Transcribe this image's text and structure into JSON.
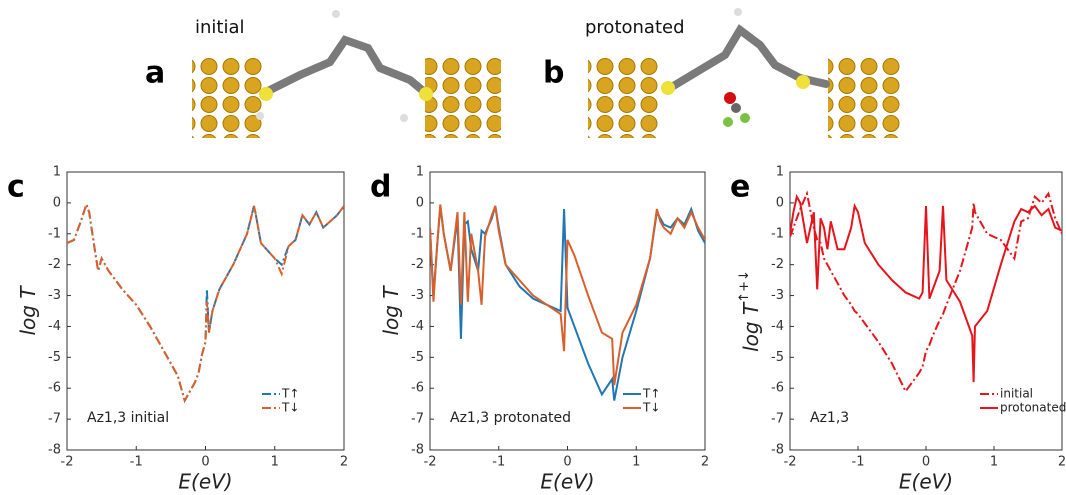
{
  "panels": {
    "a": {
      "label": "a",
      "caption": "initial"
    },
    "b": {
      "label": "b",
      "caption": "protonated"
    }
  },
  "chart_data": [
    {
      "type": "line",
      "panel_label": "c",
      "xlabel": "E(eV)",
      "ylabel": "log T",
      "annotation": "Az1,3 initial",
      "legend": "lower right",
      "xlim": [
        -2,
        2
      ],
      "ylim": [
        -8,
        1
      ],
      "xticks": [
        -2,
        -1,
        0,
        1,
        2
      ],
      "yticks": [
        -8,
        -7,
        -6,
        -5,
        -4,
        -3,
        -2,
        -1,
        0,
        1
      ],
      "x": [
        -2,
        -1.9,
        -1.8,
        -1.72,
        -1.68,
        -1.6,
        -1.55,
        -1.5,
        -1.4,
        -1.2,
        -1,
        -0.8,
        -0.6,
        -0.4,
        -0.3,
        -0.25,
        -0.15,
        -0.1,
        -0.05,
        0,
        0.02,
        0.05,
        0.1,
        0.2,
        0.4,
        0.6,
        0.7,
        0.72,
        0.8,
        1,
        1.1,
        1.2,
        1.3,
        1.4,
        1.5,
        1.6,
        1.7,
        1.8,
        1.9,
        2
      ],
      "series": [
        {
          "name": "T↑",
          "color": "#1f77b4",
          "dash": "dashdot",
          "values": [
            -1.3,
            -1.2,
            -0.6,
            -0.05,
            -0.3,
            -1.5,
            -2.2,
            -1.8,
            -2.2,
            -2.8,
            -3.3,
            -4,
            -4.8,
            -5.6,
            -6.4,
            -6.2,
            -5.8,
            -5.5,
            -4.9,
            -4.5,
            -2.8,
            -4.2,
            -3.5,
            -2.8,
            -2,
            -1,
            -0.1,
            -0.3,
            -1.3,
            -1.8,
            -2,
            -1.4,
            -1.2,
            -0.4,
            -0.7,
            -0.3,
            -0.8,
            -0.6,
            -0.4,
            -0.1
          ]
        },
        {
          "name": "T↓",
          "color": "#d9602a",
          "dash": "dashdot",
          "values": [
            -1.3,
            -1.2,
            -0.6,
            -0.05,
            -0.3,
            -1.5,
            -2.2,
            -1.8,
            -2.2,
            -2.8,
            -3.3,
            -4,
            -4.8,
            -5.6,
            -6.4,
            -6.2,
            -5.8,
            -5.5,
            -4.9,
            -4.5,
            -3.2,
            -4.2,
            -3.5,
            -2.8,
            -2,
            -1,
            -0.1,
            -0.3,
            -1.3,
            -1.8,
            -2.3,
            -1.4,
            -1.2,
            -0.4,
            -0.7,
            -0.3,
            -0.8,
            -0.6,
            -0.4,
            -0.1
          ]
        }
      ]
    },
    {
      "type": "line",
      "panel_label": "d",
      "xlabel": "E(eV)",
      "ylabel": "log T",
      "annotation": "Az1,3 protonated",
      "legend": "lower right",
      "xlim": [
        -2,
        2
      ],
      "ylim": [
        -8,
        1
      ],
      "xticks": [
        -2,
        -1,
        0,
        1,
        2
      ],
      "yticks": [
        -8,
        -7,
        -6,
        -5,
        -4,
        -3,
        -2,
        -1,
        0,
        1
      ],
      "x": [
        -2,
        -1.95,
        -1.9,
        -1.85,
        -1.8,
        -1.7,
        -1.6,
        -1.55,
        -1.5,
        -1.45,
        -1.4,
        -1.3,
        -1.25,
        -1.2,
        -1.1,
        -1.05,
        -1,
        -0.9,
        -0.7,
        -0.5,
        -0.3,
        -0.1,
        -0.05,
        0,
        0.1,
        0.3,
        0.5,
        0.65,
        0.68,
        0.8,
        1,
        1.2,
        1.3,
        1.35,
        1.4,
        1.5,
        1.6,
        1.7,
        1.8,
        1.9,
        2
      ],
      "series": [
        {
          "name": "T↑",
          "color": "#1f77b4",
          "dash": "solid",
          "values": [
            -0.8,
            -3,
            -1.5,
            -0.1,
            -1,
            -2.2,
            -0.5,
            -4.4,
            -0.7,
            -0.6,
            -1.5,
            -2.2,
            -0.9,
            -1,
            -0.5,
            -0.1,
            -0.8,
            -2,
            -2.7,
            -3.1,
            -3.3,
            -3.5,
            -0.2,
            -3.4,
            -4,
            -5.2,
            -6.2,
            -5.7,
            -6.4,
            -5,
            -3.5,
            -1.8,
            -0.3,
            -0.5,
            -0.7,
            -0.8,
            -0.5,
            -0.7,
            -0.2,
            -0.9,
            -1.3
          ]
        },
        {
          "name": "T↓",
          "color": "#d9602a",
          "dash": "solid",
          "values": [
            -0.8,
            -3.2,
            -1.5,
            -0.05,
            -1,
            -2.2,
            -0.3,
            -3.3,
            -0.3,
            -3.2,
            -1,
            -2.2,
            -3.3,
            -1.1,
            -0.4,
            -0.1,
            -0.9,
            -2,
            -2.5,
            -3,
            -3.3,
            -3.6,
            -4.8,
            -1.2,
            -1.7,
            -3,
            -4.2,
            -4.4,
            -5.9,
            -4.2,
            -3.3,
            -1.8,
            -0.2,
            -0.6,
            -0.8,
            -1,
            -0.5,
            -0.8,
            -0.3,
            -0.8,
            -1.2
          ]
        }
      ]
    },
    {
      "type": "line",
      "panel_label": "e",
      "xlabel": "E(eV)",
      "ylabel": "log T",
      "ylabel_sup": "↑+↓",
      "annotation": "Az1,3",
      "legend": "lower right",
      "xlim": [
        -2,
        2
      ],
      "ylim": [
        -8,
        1
      ],
      "xticks": [
        -2,
        -1,
        0,
        1,
        2
      ],
      "yticks": [
        -8,
        -7,
        -6,
        -5,
        -4,
        -3,
        -2,
        -1,
        0,
        1
      ],
      "x": [
        -2,
        -1.95,
        -1.9,
        -1.85,
        -1.75,
        -1.65,
        -1.6,
        -1.55,
        -1.5,
        -1.45,
        -1.4,
        -1.3,
        -1.2,
        -1.1,
        -1.05,
        -1,
        -0.9,
        -0.7,
        -0.5,
        -0.3,
        -0.1,
        -0.05,
        0,
        0.05,
        0.1,
        0.2,
        0.25,
        0.3,
        0.5,
        0.68,
        0.7,
        0.72,
        0.9,
        1.1,
        1.3,
        1.4,
        1.5,
        1.6,
        1.7,
        1.8,
        1.9,
        2
      ],
      "series": [
        {
          "name": "initial",
          "color": "#e8141b",
          "dash": "dashdot",
          "values": [
            -1.1,
            -0.8,
            -0.5,
            -0.2,
            0.3,
            -0.8,
            -1.2,
            -1.3,
            -1.8,
            -2,
            -2.2,
            -2.6,
            -3,
            -3.3,
            -3.5,
            -3.6,
            -3.9,
            -4.5,
            -5.2,
            -6.1,
            -5.5,
            -5.3,
            -4.8,
            -4.6,
            -4.3,
            -3.8,
            -3.6,
            -3.3,
            -2.2,
            -0.8,
            0,
            -0.3,
            -1,
            -1.2,
            -1.8,
            -0.6,
            -0.5,
            0.2,
            0,
            0.3,
            -0.5,
            -1
          ]
        },
        {
          "name": "protonated",
          "color": "#e8141b",
          "dash": "solid",
          "values": [
            -1,
            -0.3,
            0.2,
            0,
            -1.3,
            -0.3,
            -2.8,
            -0.5,
            -0.8,
            -1.5,
            -0.6,
            -1.5,
            -1.5,
            -0.8,
            -0.1,
            -0.3,
            -1.3,
            -2,
            -2.5,
            -2.9,
            -3.1,
            -2.9,
            -0.1,
            -3.1,
            -2.8,
            -2.2,
            -0.1,
            -2.5,
            -3.2,
            -4.3,
            -5.8,
            -4,
            -3.5,
            -2,
            -0.6,
            -0.2,
            -0.3,
            -0.1,
            -0.4,
            -0.2,
            -0.8,
            -0.9
          ]
        }
      ]
    }
  ]
}
